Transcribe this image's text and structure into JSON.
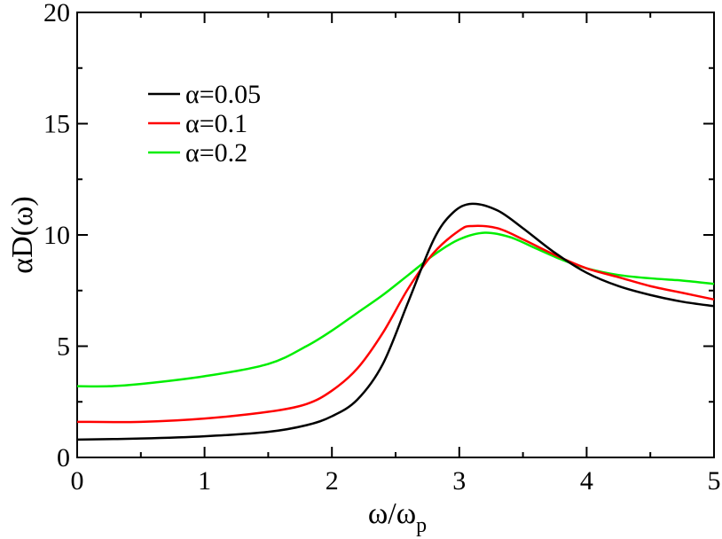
{
  "chart_data": {
    "type": "line",
    "xlim": [
      0,
      5
    ],
    "ylim": [
      0,
      20
    ],
    "x_ticks": [
      "0",
      "1",
      "2",
      "3",
      "4",
      "5"
    ],
    "y_ticks": [
      "0",
      "5",
      "10",
      "15",
      "20"
    ],
    "xlabel": {
      "main": "ω/ω",
      "sub": "p"
    },
    "ylabel": "αD(ω)",
    "grid": false,
    "legend_position": "top-left",
    "series": [
      {
        "name": "α=0.05",
        "color": "#000000",
        "points": [
          [
            0,
            0.8
          ],
          [
            0.5,
            0.85
          ],
          [
            1,
            0.95
          ],
          [
            1.5,
            1.15
          ],
          [
            1.8,
            1.45
          ],
          [
            2.0,
            1.85
          ],
          [
            2.2,
            2.6
          ],
          [
            2.4,
            4.2
          ],
          [
            2.6,
            7.0
          ],
          [
            2.8,
            9.8
          ],
          [
            2.95,
            11.0
          ],
          [
            3.1,
            11.4
          ],
          [
            3.3,
            11.1
          ],
          [
            3.5,
            10.3
          ],
          [
            3.75,
            9.2
          ],
          [
            4.0,
            8.3
          ],
          [
            4.25,
            7.7
          ],
          [
            4.5,
            7.3
          ],
          [
            4.75,
            7.0
          ],
          [
            5.0,
            6.8
          ]
        ]
      },
      {
        "name": "α=0.1",
        "color": "#ff0000",
        "points": [
          [
            0,
            1.6
          ],
          [
            0.5,
            1.6
          ],
          [
            1,
            1.75
          ],
          [
            1.5,
            2.05
          ],
          [
            1.8,
            2.4
          ],
          [
            2.0,
            3.0
          ],
          [
            2.2,
            4.0
          ],
          [
            2.4,
            5.6
          ],
          [
            2.6,
            7.6
          ],
          [
            2.8,
            9.2
          ],
          [
            3.0,
            10.2
          ],
          [
            3.1,
            10.4
          ],
          [
            3.3,
            10.3
          ],
          [
            3.5,
            9.8
          ],
          [
            3.75,
            9.1
          ],
          [
            4.0,
            8.5
          ],
          [
            4.25,
            8.1
          ],
          [
            4.5,
            7.7
          ],
          [
            4.75,
            7.4
          ],
          [
            5.0,
            7.1
          ]
        ]
      },
      {
        "name": "α=0.2",
        "color": "#00ee00",
        "points": [
          [
            0,
            3.2
          ],
          [
            0.25,
            3.2
          ],
          [
            0.5,
            3.3
          ],
          [
            1,
            3.65
          ],
          [
            1.5,
            4.2
          ],
          [
            1.8,
            5.0
          ],
          [
            2.0,
            5.7
          ],
          [
            2.2,
            6.5
          ],
          [
            2.4,
            7.3
          ],
          [
            2.6,
            8.2
          ],
          [
            2.8,
            9.1
          ],
          [
            3.0,
            9.8
          ],
          [
            3.2,
            10.1
          ],
          [
            3.4,
            9.9
          ],
          [
            3.6,
            9.4
          ],
          [
            3.8,
            8.9
          ],
          [
            4.0,
            8.5
          ],
          [
            4.25,
            8.2
          ],
          [
            4.5,
            8.05
          ],
          [
            4.75,
            7.95
          ],
          [
            5.0,
            7.8
          ]
        ]
      }
    ]
  }
}
